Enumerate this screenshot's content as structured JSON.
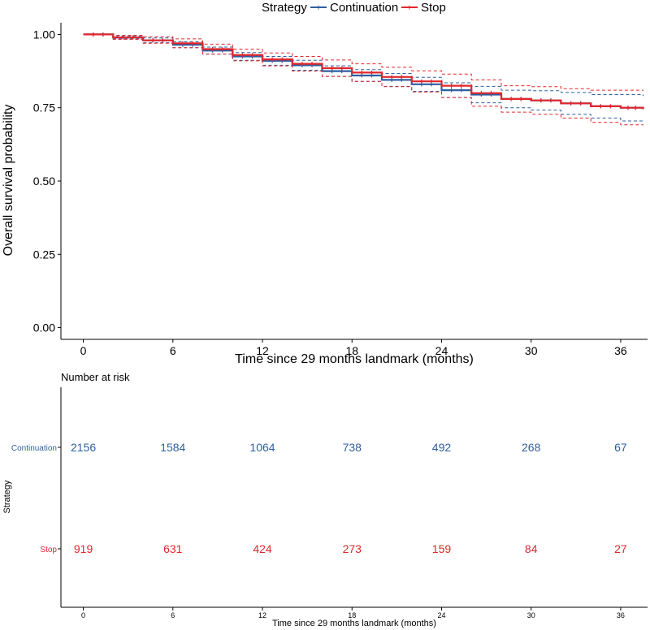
{
  "legend": {
    "title": "Strategy",
    "items": [
      {
        "label": "Continuation",
        "color": "#2E5FA1"
      },
      {
        "label": "Stop",
        "color": "#E0272C"
      }
    ]
  },
  "chart_data": [
    {
      "type": "line",
      "title": "",
      "xlabel": "Time since 29 months landmark (months)",
      "ylabel": "Overall survival probability",
      "xlim": [
        -1.5,
        37.8
      ],
      "ylim": [
        -0.04,
        1.04
      ],
      "x_ticks": [
        0,
        6,
        12,
        18,
        24,
        30,
        36
      ],
      "y_ticks": [
        0.0,
        0.25,
        0.5,
        0.75,
        1.0
      ],
      "y_tick_labels": [
        "0.00",
        "0.25",
        "0.50",
        "0.75",
        "1.00"
      ],
      "grid": false,
      "legend_position": "top",
      "series": [
        {
          "name": "Continuation",
          "color": "#2E5FA1",
          "x": [
            0,
            2,
            4,
            6,
            8,
            10,
            12,
            14,
            16,
            18,
            20,
            22,
            24,
            26,
            28,
            30,
            32,
            34,
            36,
            37.5
          ],
          "y": [
            1.0,
            0.99,
            0.98,
            0.965,
            0.945,
            0.925,
            0.91,
            0.895,
            0.875,
            0.86,
            0.845,
            0.83,
            0.81,
            0.795,
            0.78,
            0.775,
            0.765,
            0.755,
            0.75,
            0.745
          ],
          "lower": [
            1.0,
            0.985,
            0.972,
            0.955,
            0.933,
            0.912,
            0.895,
            0.878,
            0.857,
            0.84,
            0.823,
            0.806,
            0.785,
            0.767,
            0.75,
            0.742,
            0.728,
            0.715,
            0.705,
            0.7
          ],
          "upper": [
            1.0,
            0.995,
            0.988,
            0.975,
            0.957,
            0.938,
            0.925,
            0.912,
            0.893,
            0.88,
            0.867,
            0.854,
            0.835,
            0.823,
            0.81,
            0.808,
            0.802,
            0.795,
            0.795,
            0.79
          ]
        },
        {
          "name": "Stop",
          "color": "#E0272C",
          "x": [
            0,
            2,
            4,
            6,
            8,
            10,
            12,
            14,
            16,
            18,
            20,
            22,
            24,
            26,
            28,
            30,
            32,
            34,
            36,
            37.5
          ],
          "y": [
            1.0,
            0.99,
            0.98,
            0.97,
            0.95,
            0.93,
            0.915,
            0.9,
            0.885,
            0.87,
            0.855,
            0.84,
            0.825,
            0.8,
            0.78,
            0.775,
            0.765,
            0.755,
            0.75,
            0.745
          ],
          "lower": [
            1.0,
            0.983,
            0.97,
            0.955,
            0.933,
            0.91,
            0.893,
            0.875,
            0.857,
            0.84,
            0.822,
            0.804,
            0.785,
            0.755,
            0.735,
            0.728,
            0.715,
            0.7,
            0.692,
            0.69
          ],
          "upper": [
            1.0,
            0.997,
            0.992,
            0.985,
            0.967,
            0.95,
            0.937,
            0.925,
            0.913,
            0.9,
            0.888,
            0.876,
            0.865,
            0.845,
            0.825,
            0.822,
            0.815,
            0.81,
            0.81,
            0.808
          ]
        }
      ]
    },
    {
      "type": "table",
      "title": "Number at risk",
      "xlabel": "Time since 29 months landmark (months)",
      "ylabel": "Strategy",
      "x_ticks": [
        0,
        6,
        12,
        18,
        24,
        30,
        36
      ],
      "rows": [
        {
          "name": "Continuation",
          "color": "#2E5FA1",
          "values": [
            2156,
            1584,
            1064,
            738,
            492,
            268,
            67
          ]
        },
        {
          "name": "Stop",
          "color": "#E0272C",
          "values": [
            919,
            631,
            424,
            273,
            159,
            84,
            27
          ]
        }
      ]
    }
  ]
}
